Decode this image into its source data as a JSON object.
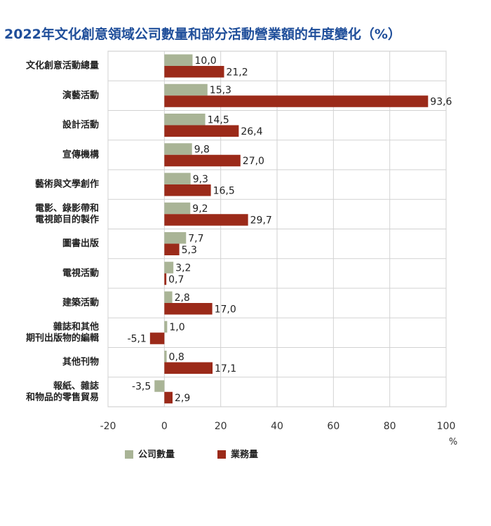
{
  "chart_data": {
    "type": "bar",
    "orientation": "horizontal",
    "title": "2022年文化創意領域公司數量和部分活動營業額的年度變化（%）",
    "categories": [
      [
        "文化創意活動總量"
      ],
      [
        "演藝活動"
      ],
      [
        "設計活動"
      ],
      [
        "宣傳機構"
      ],
      [
        "藝術與文學創作"
      ],
      [
        "電影、錄影帶和",
        "電視節目的製作"
      ],
      [
        "圖書出版"
      ],
      [
        "電視活動"
      ],
      [
        "建築活動"
      ],
      [
        "雜誌和其他",
        "期刊出版物的編輯"
      ],
      [
        "其他刊物"
      ],
      [
        "報紙、雜誌",
        "和物品的零售貿易"
      ]
    ],
    "series": [
      {
        "name": "公司數量",
        "color": "#a9b496",
        "values": [
          10.0,
          15.3,
          14.5,
          9.8,
          9.3,
          9.2,
          7.7,
          3.2,
          2.8,
          1.0,
          0.8,
          -3.5
        ],
        "labels": [
          "10,0",
          "15,3",
          "14,5",
          "9,8",
          "9,3",
          "9,2",
          "7,7",
          "3,2",
          "2,8",
          "1,0",
          "0,8",
          "-3,5"
        ]
      },
      {
        "name": "業務量",
        "color": "#9b2a19",
        "values": [
          21.2,
          93.6,
          26.4,
          27.0,
          16.5,
          29.7,
          5.3,
          0.7,
          17.0,
          -5.1,
          17.1,
          2.9
        ],
        "labels": [
          "21,2",
          "93,6",
          "26,4",
          "27,0",
          "16,5",
          "29,7",
          "5,3",
          "0,7",
          "17,0",
          "-5,1",
          "17,1",
          "2,9"
        ]
      }
    ],
    "xlim": [
      -20,
      100
    ],
    "xticks": [
      -20,
      0,
      20,
      40,
      60,
      80,
      100
    ],
    "xunit": "%",
    "grid": true,
    "legend_position": "bottom"
  }
}
